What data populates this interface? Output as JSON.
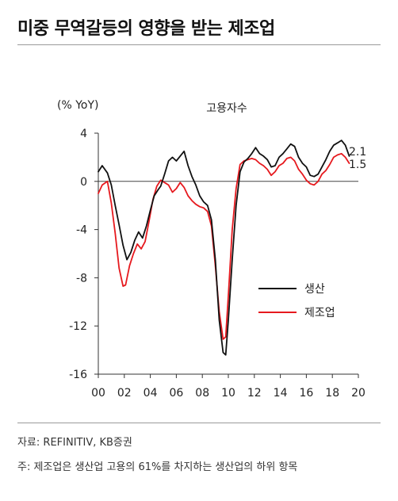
{
  "header": {
    "title": "미중 무역갈등의 영향을 받는 제조업"
  },
  "footer": {
    "source": "자료: REFINITIV, KB증권",
    "note": "주: 제조업은 생산업 고용의 61%를 차지하는 생산업의 하위 항목"
  },
  "chart_data": {
    "type": "line",
    "title": "고용자수",
    "ylabel": "(% YoY)",
    "xlabel": "",
    "ylim": [
      -16,
      4
    ],
    "yticks": [
      4,
      0,
      -4,
      -8,
      -12,
      -16
    ],
    "xlim": [
      2000,
      2020
    ],
    "xticks": [
      {
        "value": 2000,
        "label": "00"
      },
      {
        "value": 2002,
        "label": "02"
      },
      {
        "value": 2004,
        "label": "04"
      },
      {
        "value": 2006,
        "label": "06"
      },
      {
        "value": 2008,
        "label": "08"
      },
      {
        "value": 2010,
        "label": "10"
      },
      {
        "value": 2012,
        "label": "12"
      },
      {
        "value": 2014,
        "label": "14"
      },
      {
        "value": 2016,
        "label": "16"
      },
      {
        "value": 2018,
        "label": "18"
      },
      {
        "value": 2020,
        "label": "20"
      }
    ],
    "legend_position": "bottom-right",
    "series": [
      {
        "name": "생산",
        "color": "#111111",
        "end_label": "2.1",
        "points": [
          [
            2000.0,
            0.8
          ],
          [
            2000.3,
            1.3
          ],
          [
            2000.7,
            0.7
          ],
          [
            2001.0,
            -0.3
          ],
          [
            2001.3,
            -2.0
          ],
          [
            2001.6,
            -3.6
          ],
          [
            2001.9,
            -5.3
          ],
          [
            2002.2,
            -6.5
          ],
          [
            2002.5,
            -5.9
          ],
          [
            2002.8,
            -4.9
          ],
          [
            2003.1,
            -4.2
          ],
          [
            2003.4,
            -4.7
          ],
          [
            2003.7,
            -3.7
          ],
          [
            2004.0,
            -2.4
          ],
          [
            2004.3,
            -1.2
          ],
          [
            2004.6,
            -0.7
          ],
          [
            2004.8,
            -0.4
          ],
          [
            2005.1,
            0.6
          ],
          [
            2005.4,
            1.7
          ],
          [
            2005.7,
            2.0
          ],
          [
            2006.0,
            1.7
          ],
          [
            2006.3,
            2.1
          ],
          [
            2006.6,
            2.5
          ],
          [
            2006.9,
            1.3
          ],
          [
            2007.2,
            0.4
          ],
          [
            2007.5,
            -0.3
          ],
          [
            2007.8,
            -1.2
          ],
          [
            2008.1,
            -1.7
          ],
          [
            2008.4,
            -2.0
          ],
          [
            2008.7,
            -3.2
          ],
          [
            2009.0,
            -6.5
          ],
          [
            2009.3,
            -11.5
          ],
          [
            2009.6,
            -14.2
          ],
          [
            2009.8,
            -14.4
          ],
          [
            2010.0,
            -11.5
          ],
          [
            2010.3,
            -6.5
          ],
          [
            2010.6,
            -2.0
          ],
          [
            2010.9,
            0.8
          ],
          [
            2011.2,
            1.6
          ],
          [
            2011.5,
            1.9
          ],
          [
            2011.8,
            2.3
          ],
          [
            2012.1,
            2.8
          ],
          [
            2012.4,
            2.3
          ],
          [
            2012.7,
            2.1
          ],
          [
            2013.0,
            1.8
          ],
          [
            2013.3,
            1.2
          ],
          [
            2013.6,
            1.3
          ],
          [
            2013.9,
            2.0
          ],
          [
            2014.2,
            2.3
          ],
          [
            2014.5,
            2.7
          ],
          [
            2014.8,
            3.1
          ],
          [
            2015.1,
            2.9
          ],
          [
            2015.4,
            2.0
          ],
          [
            2015.7,
            1.5
          ],
          [
            2016.0,
            1.2
          ],
          [
            2016.3,
            0.5
          ],
          [
            2016.6,
            0.4
          ],
          [
            2016.9,
            0.6
          ],
          [
            2017.2,
            1.2
          ],
          [
            2017.5,
            1.8
          ],
          [
            2017.8,
            2.5
          ],
          [
            2018.1,
            3.0
          ],
          [
            2018.4,
            3.2
          ],
          [
            2018.7,
            3.4
          ],
          [
            2019.0,
            3.0
          ],
          [
            2019.3,
            2.1
          ]
        ]
      },
      {
        "name": "제조업",
        "color": "#e6191e",
        "end_label": "1.5",
        "points": [
          [
            2000.0,
            -1.0
          ],
          [
            2000.3,
            -0.3
          ],
          [
            2000.7,
            0.0
          ],
          [
            2001.0,
            -1.8
          ],
          [
            2001.3,
            -4.3
          ],
          [
            2001.6,
            -7.2
          ],
          [
            2001.9,
            -8.7
          ],
          [
            2002.1,
            -8.6
          ],
          [
            2002.4,
            -7.0
          ],
          [
            2002.7,
            -6.0
          ],
          [
            2003.0,
            -5.2
          ],
          [
            2003.3,
            -5.6
          ],
          [
            2003.6,
            -5.0
          ],
          [
            2003.9,
            -3.3
          ],
          [
            2004.2,
            -1.5
          ],
          [
            2004.5,
            -0.4
          ],
          [
            2004.8,
            0.1
          ],
          [
            2005.1,
            -0.1
          ],
          [
            2005.4,
            -0.3
          ],
          [
            2005.7,
            -0.9
          ],
          [
            2006.0,
            -0.6
          ],
          [
            2006.3,
            -0.1
          ],
          [
            2006.6,
            -0.5
          ],
          [
            2006.9,
            -1.2
          ],
          [
            2007.2,
            -1.6
          ],
          [
            2007.5,
            -1.9
          ],
          [
            2007.8,
            -2.1
          ],
          [
            2008.1,
            -2.2
          ],
          [
            2008.4,
            -2.5
          ],
          [
            2008.7,
            -3.7
          ],
          [
            2009.0,
            -7.0
          ],
          [
            2009.3,
            -10.8
          ],
          [
            2009.6,
            -13.1
          ],
          [
            2009.8,
            -12.9
          ],
          [
            2010.0,
            -9.5
          ],
          [
            2010.3,
            -4.0
          ],
          [
            2010.6,
            -0.6
          ],
          [
            2010.9,
            1.4
          ],
          [
            2011.2,
            1.7
          ],
          [
            2011.5,
            1.8
          ],
          [
            2011.8,
            1.9
          ],
          [
            2012.1,
            1.8
          ],
          [
            2012.4,
            1.5
          ],
          [
            2012.7,
            1.3
          ],
          [
            2013.0,
            1.0
          ],
          [
            2013.3,
            0.5
          ],
          [
            2013.6,
            0.8
          ],
          [
            2013.9,
            1.3
          ],
          [
            2014.2,
            1.5
          ],
          [
            2014.5,
            1.9
          ],
          [
            2014.8,
            2.0
          ],
          [
            2015.1,
            1.7
          ],
          [
            2015.4,
            1.0
          ],
          [
            2015.7,
            0.6
          ],
          [
            2016.0,
            0.1
          ],
          [
            2016.3,
            -0.2
          ],
          [
            2016.6,
            -0.3
          ],
          [
            2016.9,
            0.0
          ],
          [
            2017.2,
            0.6
          ],
          [
            2017.5,
            0.9
          ],
          [
            2017.8,
            1.4
          ],
          [
            2018.1,
            2.0
          ],
          [
            2018.4,
            2.2
          ],
          [
            2018.7,
            2.3
          ],
          [
            2019.0,
            2.0
          ],
          [
            2019.3,
            1.5
          ]
        ]
      }
    ]
  }
}
